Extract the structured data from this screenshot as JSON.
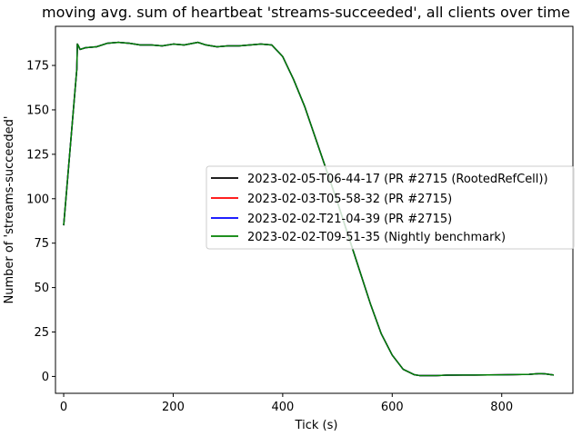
{
  "chart_data": {
    "type": "line",
    "title": "moving avg. sum of heartbeat 'streams-succeeded', all clients over time",
    "xlabel": "Tick (s)",
    "ylabel": "Number of 'streams-succeeded'",
    "xlim": [
      -15,
      930
    ],
    "ylim": [
      -9.5,
      197
    ],
    "xticks": [
      0,
      200,
      400,
      600,
      800
    ],
    "yticks": [
      0,
      25,
      50,
      75,
      100,
      125,
      150,
      175
    ],
    "legend_position": "center-right",
    "series": [
      {
        "name": "2023-02-05-T06-44-17 (PR #2715 (RootedRefCell))",
        "color": "#000000"
      },
      {
        "name": "2023-02-03-T05-58-32 (PR #2715)",
        "color": "#ff0000"
      },
      {
        "name": "2023-02-02-T21-04-39 (PR #2715)",
        "color": "#0000ff"
      },
      {
        "name": "2023-02-02-T09-51-35 (Nightly benchmark)",
        "color": "#008000"
      }
    ],
    "x": [
      0,
      24,
      25,
      27,
      30,
      40,
      60,
      80,
      100,
      120,
      140,
      160,
      180,
      200,
      220,
      245,
      260,
      280,
      300,
      320,
      340,
      360,
      380,
      400,
      420,
      440,
      460,
      480,
      500,
      520,
      540,
      560,
      580,
      600,
      620,
      640,
      650,
      660,
      670,
      680,
      700,
      750,
      800,
      850,
      870,
      880,
      895
    ],
    "y": [
      85,
      173,
      187,
      186,
      184,
      185,
      185.5,
      187.5,
      188,
      187.5,
      186.5,
      186.5,
      186,
      187,
      186.5,
      188,
      186.5,
      185.5,
      186,
      186,
      186.5,
      187,
      186.5,
      180,
      167,
      152,
      134,
      116,
      98,
      79,
      60,
      41,
      24,
      12,
      4,
      1,
      0.5,
      0.5,
      0.5,
      0.5,
      0.7,
      0.8,
      0.9,
      1.2,
      1.6,
      1.4,
      0.8
    ]
  }
}
